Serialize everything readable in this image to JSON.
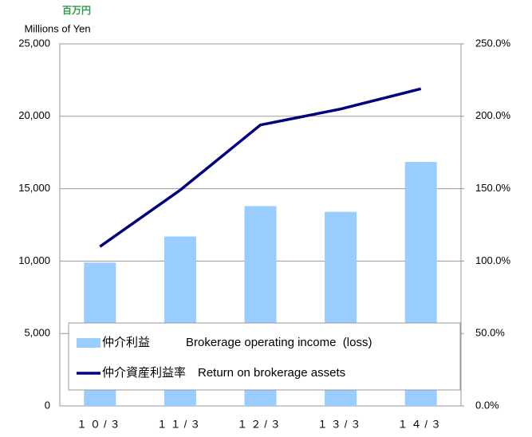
{
  "chart_data": {
    "type": "bar_line",
    "unit_label": "百万円",
    "ylabel": "Millions of Yen",
    "categories": [
      "１０/３",
      "１１/３",
      "１２/３",
      "１３/３",
      "１４/３"
    ],
    "series": [
      {
        "name": "仲介利益　　　Brokerage operating income  (loss)",
        "type": "bar",
        "color": "#99ccff",
        "values": [
          9900,
          11700,
          13800,
          13400,
          16850
        ]
      },
      {
        "name": "仲介資産利益率　Return on brokerage assets",
        "type": "line",
        "axis": "y2",
        "color": "#000080",
        "values": [
          110,
          149,
          194,
          205,
          219
        ]
      }
    ],
    "ylim": [
      0,
      25000
    ],
    "yticks": [
      0,
      {
        "value": 5000,
        "label": "5,000"
      },
      {
        "value": 10000,
        "label": "10,000"
      },
      {
        "value": 15000,
        "label": "15,000"
      },
      {
        "value": 20000,
        "label": "20,000"
      },
      {
        "value": 25000,
        "label": "25,000"
      }
    ],
    "y2lim": [
      0,
      250
    ],
    "y2ticks": [
      {
        "value": 0,
        "label": "0.0%"
      },
      {
        "value": 50,
        "label": "50.0%"
      },
      {
        "value": 100,
        "label": "100.0%"
      },
      {
        "value": 150,
        "label": "150.0%"
      },
      {
        "value": 200,
        "label": "200.0%"
      },
      {
        "value": 250,
        "label": "250.0%"
      }
    ],
    "grid": true
  }
}
